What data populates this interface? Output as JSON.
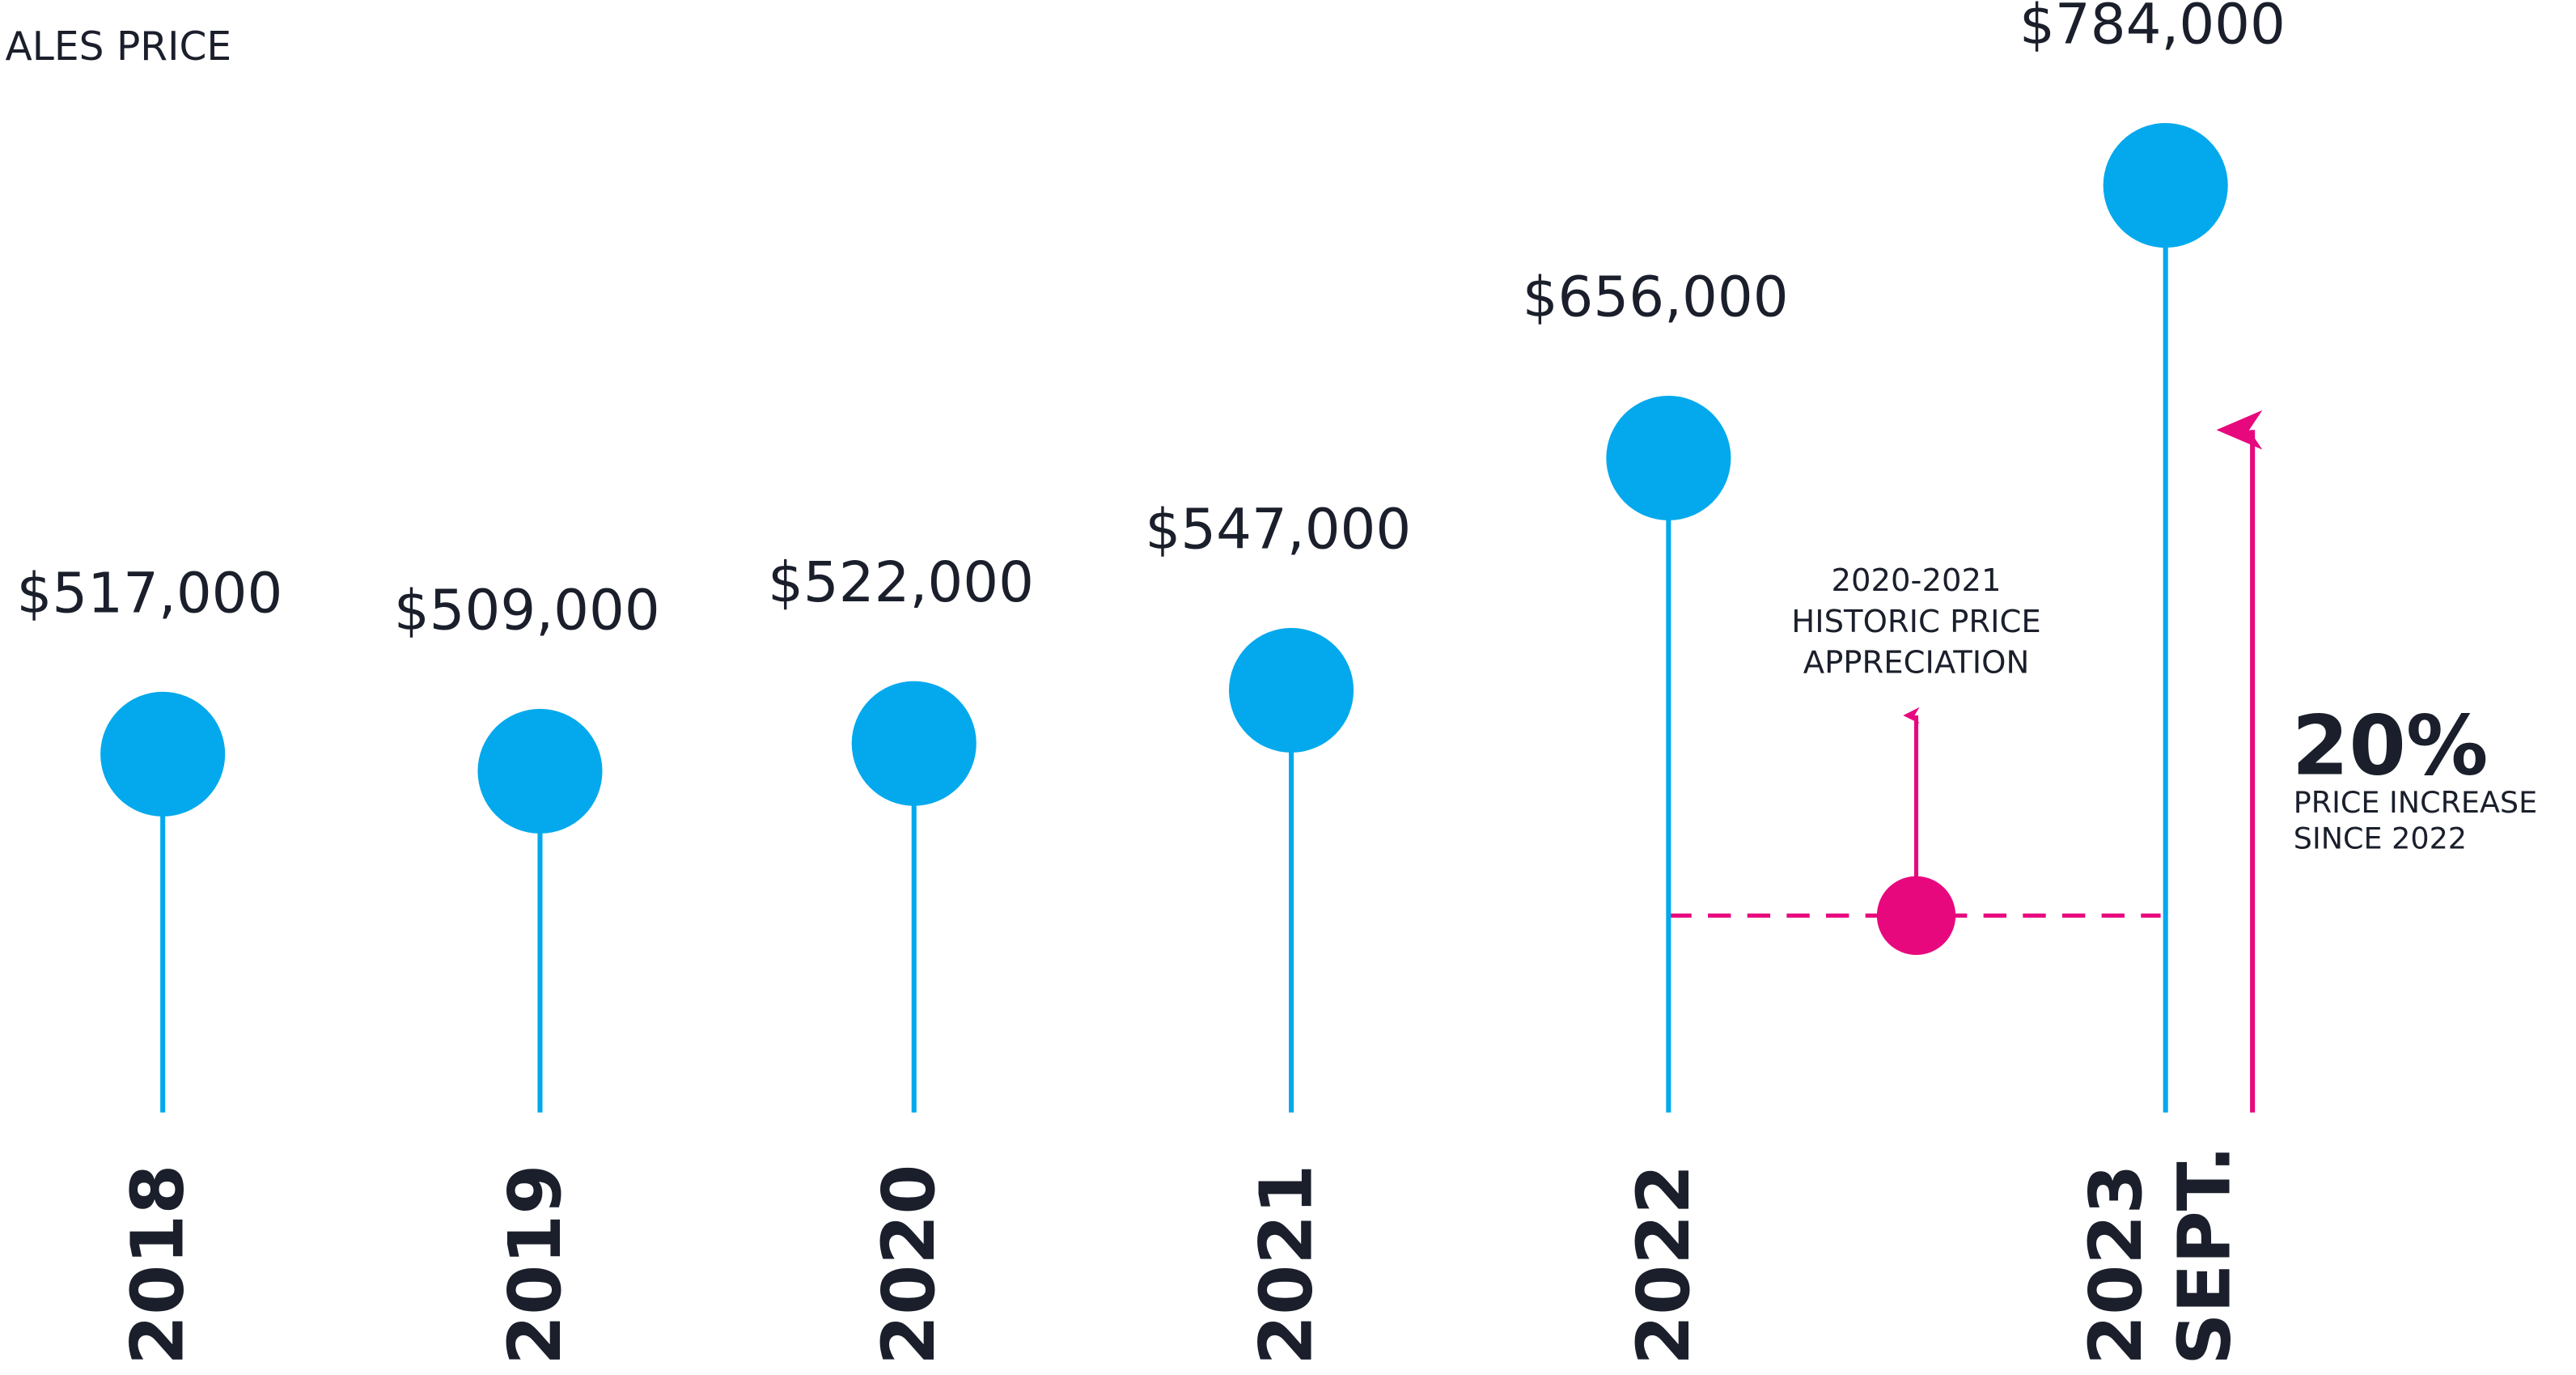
{
  "chart_data": {
    "type": "lollipop",
    "title": "ALES PRICE",
    "categories": [
      "2018",
      "2019",
      "2020",
      "2021",
      "2022",
      "2023 SEPT."
    ],
    "values": [
      517000,
      509000,
      522000,
      547000,
      656000,
      784000
    ],
    "value_labels": [
      "$517,000",
      "$509,000",
      "$522,000",
      "$547,000",
      "$656,000",
      "$784,000"
    ],
    "color": "#03a9ec",
    "accent_color": "#e8087e",
    "annotations": {
      "historic": [
        "2020-2021",
        "HISTORIC PRICE",
        "APPRECIATION"
      ],
      "increase": "20%",
      "increase_note": [
        "PRICE INCREASE",
        "SINCE 2022"
      ]
    }
  }
}
